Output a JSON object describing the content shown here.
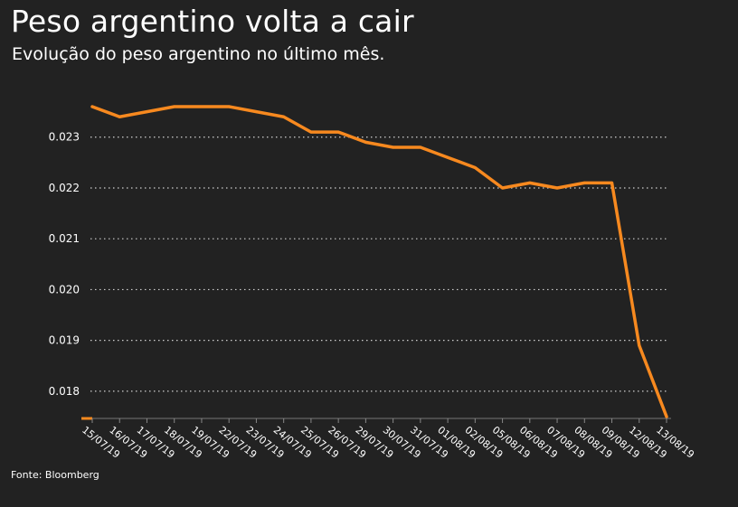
{
  "header": {
    "title": "Peso argentino volta a cair",
    "subtitle": "Evolução do peso argentino no último mês."
  },
  "footer": {
    "source": "Fonte: Bloomberg"
  },
  "colors": {
    "background": "#222222",
    "line": "#f7891f",
    "grid": "#cfcfcf",
    "text": "#ffffff"
  },
  "chart_data": {
    "type": "line",
    "title": "Peso argentino volta a cair",
    "subtitle": "Evolução do peso argentino no último mês.",
    "xlabel": "",
    "ylabel": "",
    "ylim": [
      0.0175,
      0.0238
    ],
    "yticks": [
      0.018,
      0.019,
      0.02,
      0.021,
      0.022,
      0.023
    ],
    "ytick_labels": [
      "0.018",
      "0.019",
      "0.020",
      "0.021",
      "0.022",
      "0.023"
    ],
    "grid": "horizontal dotted",
    "categories": [
      "15/07/19",
      "16/07/19",
      "17/07/19",
      "18/07/19",
      "19/07/19",
      "22/07/19",
      "23/07/19",
      "24/07/19",
      "25/07/19",
      "26/07/19",
      "29/07/19",
      "30/07/19",
      "31/07/19",
      "01/08/19",
      "02/08/19",
      "05/08/19",
      "06/08/19",
      "07/08/19",
      "08/08/19",
      "09/08/19",
      "12/08/19",
      "13/08/19"
    ],
    "series": [
      {
        "values": [
          0.0236,
          0.0234,
          0.0235,
          0.0236,
          0.0236,
          0.0236,
          0.0235,
          0.0234,
          0.0231,
          0.0231,
          0.0229,
          0.0228,
          0.0228,
          0.0226,
          0.0224,
          0.022,
          0.0221,
          0.022,
          0.0221,
          0.0221,
          0.0189,
          0.0175
        ]
      }
    ]
  }
}
